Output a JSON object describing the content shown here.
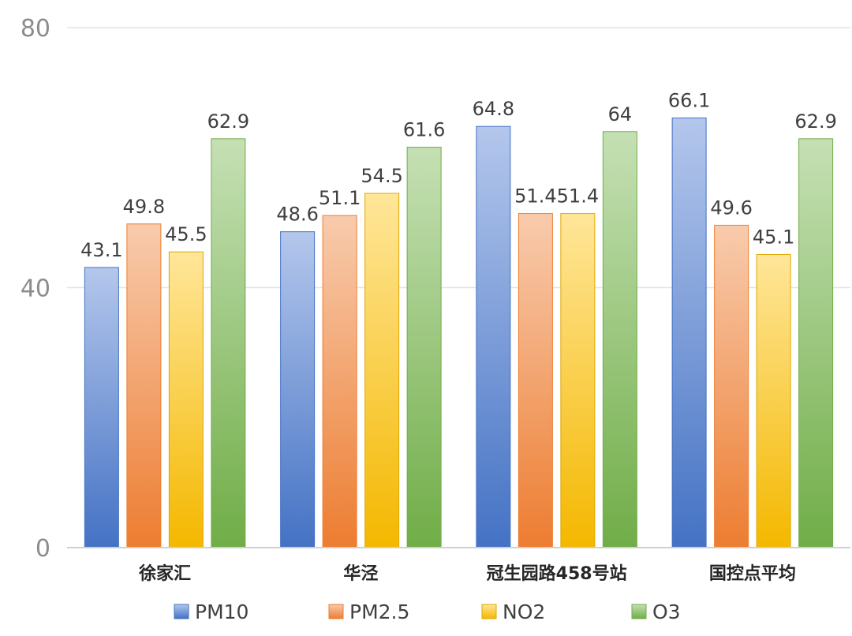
{
  "chart_data": {
    "type": "bar",
    "title": "",
    "xlabel": "",
    "ylabel": "",
    "ylim": [
      0,
      80
    ],
    "yticks": [
      0,
      40,
      80
    ],
    "grid": true,
    "legend_position": "bottom",
    "categories": [
      "徐家汇",
      "华泾",
      "冠生园路458号站",
      "国控点平均"
    ],
    "series": [
      {
        "name": "PM10",
        "values": [
          43.1,
          48.6,
          64.8,
          66.1
        ],
        "color_top": "#b4c7ec",
        "color_bottom": "#4472c4",
        "stroke": "#4472c4"
      },
      {
        "name": "PM2.5",
        "values": [
          49.8,
          51.1,
          51.4,
          49.6
        ],
        "color_top": "#f8cbad",
        "color_bottom": "#ed7d31",
        "stroke": "#ed7d31"
      },
      {
        "name": "NO2",
        "values": [
          45.5,
          54.5,
          51.4,
          45.1
        ],
        "color_top": "#ffe699",
        "color_bottom": "#f4b800",
        "stroke": "#e0a800"
      },
      {
        "name": "O3",
        "values": [
          62.9,
          61.6,
          64,
          62.9
        ],
        "color_top": "#c5e0b4",
        "color_bottom": "#70ad47",
        "stroke": "#70ad47"
      }
    ]
  }
}
